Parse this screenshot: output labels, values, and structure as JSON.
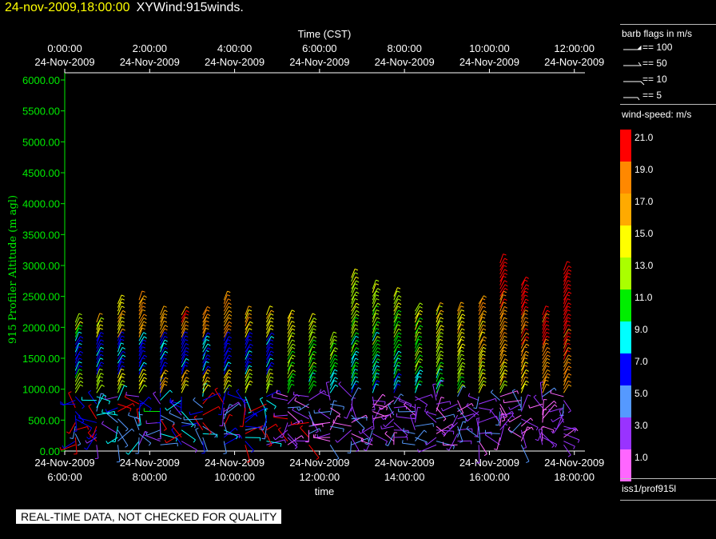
{
  "header": {
    "timestamp": "24-nov-2009,18:00:00",
    "name": "XYWind:915winds."
  },
  "legend": {
    "barb_title": "barb flags in m/s",
    "barb_items": [
      "== 100",
      "== 50",
      "== 10",
      "== 5"
    ],
    "speed_title": "wind-speed: m/s",
    "speed_bins": [
      {
        "label": "21.0",
        "color": "#ff0000"
      },
      {
        "label": "19.0",
        "color": "#ff8800"
      },
      {
        "label": "17.0",
        "color": "#ffaa00"
      },
      {
        "label": "15.0",
        "color": "#ffff00"
      },
      {
        "label": "13.0",
        "color": "#aaff00"
      },
      {
        "label": "11.0",
        "color": "#00ee00"
      },
      {
        "label": "9.0",
        "color": "#00ffff"
      },
      {
        "label": "7.0",
        "color": "#0000ff"
      },
      {
        "label": "5.0",
        "color": "#5599ff"
      },
      {
        "label": "3.0",
        "color": "#9933ff"
      },
      {
        "label": "1.0",
        "color": "#ff66ff"
      }
    ],
    "source": "iss1/prof915l"
  },
  "footer": {
    "banner": "REAL-TIME DATA, NOT CHECKED FOR QUALITY"
  },
  "chart_data": {
    "type": "scatter",
    "subtype": "wind-barb profile",
    "xlabel": "time",
    "x2label": "Time (CST)",
    "ylabel": "915 Profiler Altitude (m agl)",
    "ylim": [
      0,
      6000
    ],
    "yticks": [
      "0.00",
      "500.00",
      "1000.00",
      "1500.00",
      "2000.00",
      "2500.00",
      "3000.00",
      "3500.00",
      "4000.00",
      "4500.00",
      "5000.00",
      "5500.00",
      "6000.00"
    ],
    "xlim": [
      "24-Nov-2009 6:00:00",
      "24-Nov-2009 18:15:00"
    ],
    "xticks_bottom": [
      {
        "date": "24-Nov-2009",
        "time": "6:00:00"
      },
      {
        "date": "24-Nov-2009",
        "time": "8:00:00"
      },
      {
        "date": "24-Nov-2009",
        "time": "10:00:00"
      },
      {
        "date": "24-Nov-2009",
        "time": "12:00:00"
      },
      {
        "date": "24-Nov-2009",
        "time": "14:00:00"
      },
      {
        "date": "24-Nov-2009",
        "time": "16:00:00"
      },
      {
        "date": "24-Nov-2009",
        "time": "18:00:00"
      }
    ],
    "xticks_top": [
      {
        "time": "0:00:00",
        "date": "24-Nov-2009"
      },
      {
        "time": "2:00:00",
        "date": "24-Nov-2009"
      },
      {
        "time": "4:00:00",
        "date": "24-Nov-2009"
      },
      {
        "time": "6:00:00",
        "date": "24-Nov-2009"
      },
      {
        "time": "8:00:00",
        "date": "24-Nov-2009"
      },
      {
        "time": "10:00:00",
        "date": "24-Nov-2009"
      },
      {
        "time": "12:00:00",
        "date": "24-Nov-2009"
      }
    ],
    "grid": false,
    "profiles": [
      {
        "time": "06:15",
        "top": 2100
      },
      {
        "time": "06:45",
        "top": 2100
      },
      {
        "time": "07:15",
        "top": 2400
      },
      {
        "time": "07:45",
        "top": 2450
      },
      {
        "time": "08:15",
        "top": 2200
      },
      {
        "time": "08:45",
        "top": 2250
      },
      {
        "time": "09:15",
        "top": 2200
      },
      {
        "time": "09:45",
        "top": 2450
      },
      {
        "time": "10:15",
        "top": 2200
      },
      {
        "time": "10:45",
        "top": 2200
      },
      {
        "time": "11:15",
        "top": 2150
      },
      {
        "time": "11:45",
        "top": 2100
      },
      {
        "time": "12:15",
        "top": 1800
      },
      {
        "time": "12:45",
        "top": 2850
      },
      {
        "time": "13:15",
        "top": 2650
      },
      {
        "time": "13:45",
        "top": 2500
      },
      {
        "time": "14:15",
        "top": 2300
      },
      {
        "time": "14:45",
        "top": 2300
      },
      {
        "time": "15:15",
        "top": 2300
      },
      {
        "time": "15:45",
        "top": 2400
      },
      {
        "time": "16:15",
        "top": 3050
      },
      {
        "time": "16:45",
        "top": 2700
      },
      {
        "time": "17:15",
        "top": 2200
      },
      {
        "time": "17:45",
        "top": 2950
      }
    ]
  }
}
